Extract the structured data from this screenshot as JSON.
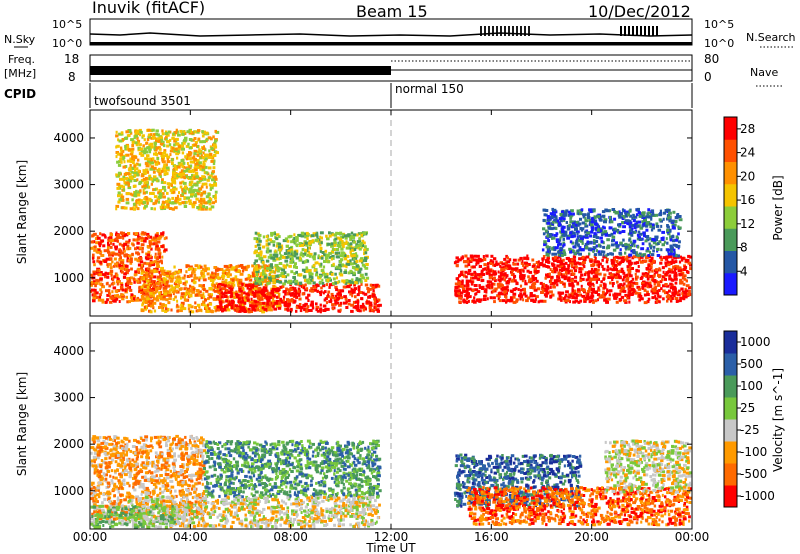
{
  "header": {
    "station": "Inuvik (fitACF)",
    "beam": "Beam 15",
    "date": "10/Dec/2012"
  },
  "status_panels": {
    "nsky": {
      "label": "N.Sky",
      "top_tick": "10^5",
      "bottom_tick": "10^0",
      "right_label": "N.Search"
    },
    "freq": {
      "label_line1": "Freq.",
      "label_line2": "[MHz]",
      "top_tick": "18",
      "bottom_tick": "8",
      "right_top_tick": "80",
      "right_bottom_tick": "0",
      "right_label": "Nave"
    },
    "cpid": {
      "label": "CPID",
      "segments": [
        {
          "name": "twofsound 3501",
          "start_hour": 0,
          "end_hour": 12
        },
        {
          "name": "normal 150",
          "start_hour": 12,
          "end_hour": 24
        }
      ]
    }
  },
  "colors": {
    "power": [
      "#1a1aff",
      "#2457a5",
      "#4a9a5a",
      "#8ccd3a",
      "#f5c400",
      "#ff9000",
      "#ff5000",
      "#ff0000"
    ],
    "velocity": [
      "#ff0000",
      "#ff6a00",
      "#ff9a00",
      "#c8c8c8",
      "#78c83c",
      "#4a9a5a",
      "#2b5fa8",
      "#1a2d9a"
    ]
  },
  "chart_data": [
    {
      "type": "heatmap",
      "name": "power",
      "xlabel": "",
      "ylabel": "Slant Range [km]",
      "xlim_hours": [
        0,
        24
      ],
      "ylim_km": [
        180,
        4600
      ],
      "y_ticks": [
        "1000",
        "2000",
        "3000",
        "4000"
      ],
      "colorbar_label": "Power [dB]",
      "colorbar_ticks": [
        "4",
        "8",
        "12",
        "16",
        "20",
        "24",
        "28"
      ],
      "colorbar_range": [
        0,
        30
      ],
      "regions": [
        {
          "start_hour": 0.0,
          "end_hour": 3.0,
          "range_km": [
            500,
            2000
          ],
          "level": 6
        },
        {
          "start_hour": 2.0,
          "end_hour": 7.5,
          "range_km": [
            300,
            1300
          ],
          "level": 5
        },
        {
          "start_hour": 5.0,
          "end_hour": 11.5,
          "range_km": [
            300,
            900
          ],
          "level": 7
        },
        {
          "start_hour": 6.5,
          "end_hour": 11.0,
          "range_km": [
            900,
            2000
          ],
          "level": 3
        },
        {
          "start_hour": 14.5,
          "end_hour": 23.9,
          "range_km": [
            500,
            1500
          ],
          "level": 7
        },
        {
          "start_hour": 18.0,
          "end_hour": 23.5,
          "range_km": [
            1500,
            2500
          ],
          "level": 1
        },
        {
          "start_hour": 1.0,
          "end_hour": 5.0,
          "range_km": [
            2500,
            4200
          ],
          "level": 4
        }
      ]
    },
    {
      "type": "heatmap",
      "name": "velocity",
      "xlabel": "Time UT",
      "ylabel": "Slant Range [km]",
      "xlim_hours": [
        0,
        24
      ],
      "ylim_km": [
        180,
        4600
      ],
      "x_ticks": [
        "00:00",
        "04:00",
        "08:00",
        "12:00",
        "16:00",
        "20:00",
        "00:00"
      ],
      "y_ticks": [
        "1000",
        "2000",
        "3000",
        "4000"
      ],
      "colorbar_label": "Velocity [m s^-1]",
      "colorbar_ticks": [
        "1000",
        "500",
        "100",
        "25",
        "-25",
        "-100",
        "-500",
        "-1000"
      ],
      "regions": [
        {
          "start_hour": 0.0,
          "end_hour": 4.5,
          "range_km": [
            400,
            2200
          ],
          "level": 2
        },
        {
          "start_hour": 4.5,
          "end_hour": 11.5,
          "range_km": [
            900,
            2100
          ],
          "level": 5
        },
        {
          "start_hour": 1.5,
          "end_hour": 11.5,
          "range_km": [
            250,
            900
          ],
          "level": 3
        },
        {
          "start_hour": 0.0,
          "end_hour": 3.5,
          "range_km": [
            250,
            700
          ],
          "level": 4
        },
        {
          "start_hour": 14.5,
          "end_hour": 19.5,
          "range_km": [
            700,
            1800
          ],
          "level": 6
        },
        {
          "start_hour": 15.0,
          "end_hour": 23.9,
          "range_km": [
            300,
            1100
          ],
          "level": 1
        },
        {
          "start_hour": 20.5,
          "end_hour": 23.9,
          "range_km": [
            1000,
            2100
          ],
          "level": 3
        }
      ]
    }
  ]
}
